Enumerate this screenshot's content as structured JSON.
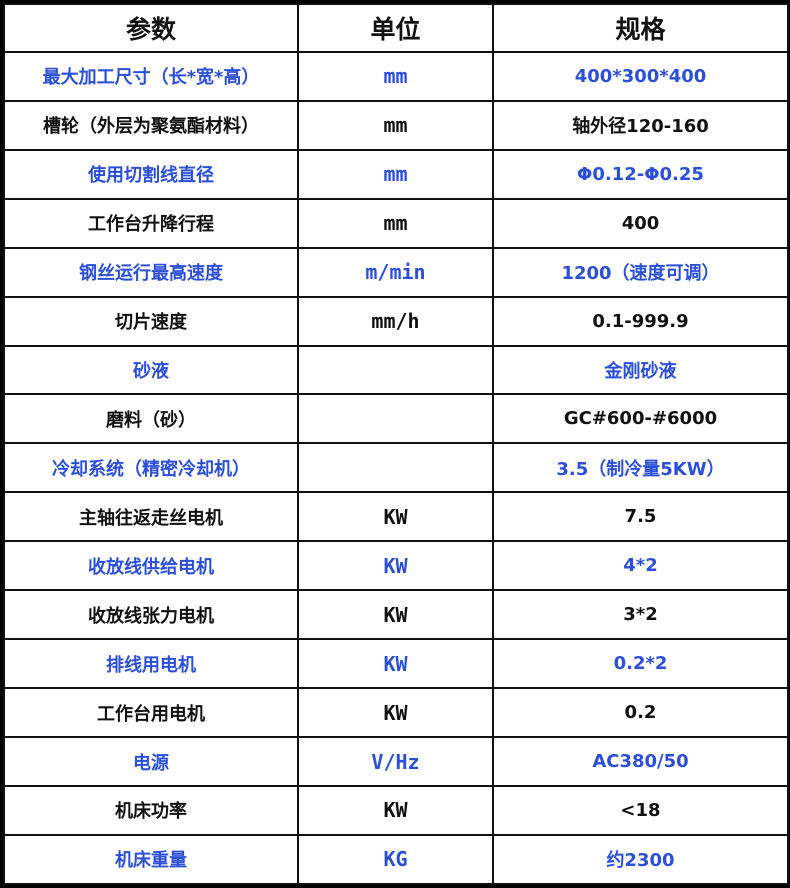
{
  "colors": {
    "blue_text": "#2b4fd8",
    "black_text": "#111111",
    "border": "#000000"
  },
  "headers": [
    "参数",
    "单位",
    "规格"
  ],
  "rows": [
    {
      "param": "最大加工尺寸（长*宽*高）",
      "unit": "mm",
      "spec": "400*300*400",
      "blue": true
    },
    {
      "param": "槽轮（外层为聚氨酯材料）",
      "unit": "mm",
      "spec": "轴外径120-160",
      "blue": false
    },
    {
      "param": "使用切割线直径",
      "unit": "mm",
      "spec": "Φ0.12-Φ0.25",
      "blue": true
    },
    {
      "param": "工作台升降行程",
      "unit": "mm",
      "spec": "400",
      "blue": false
    },
    {
      "param": "钢丝运行最高速度",
      "unit": "m/min",
      "spec": "1200（速度可调）",
      "blue": true
    },
    {
      "param": "切片速度",
      "unit": "mm/h",
      "spec": "0.1-999.9",
      "blue": false
    },
    {
      "param": "砂液",
      "unit": "",
      "spec": "金刚砂液",
      "blue": true
    },
    {
      "param": "磨料（砂）",
      "unit": "",
      "spec": "GC#600-#6000",
      "blue": false
    },
    {
      "param": "冷却系统（精密冷却机）",
      "unit": "",
      "spec": "3.5（制冷量5KW）",
      "blue": true
    },
    {
      "param": "主轴往返走丝电机",
      "unit": "KW",
      "spec": "7.5",
      "blue": false
    },
    {
      "param": "收放线供给电机",
      "unit": "KW",
      "spec": "4*2",
      "blue": true
    },
    {
      "param": "收放线张力电机",
      "unit": "KW",
      "spec": "3*2",
      "blue": false
    },
    {
      "param": "排线用电机",
      "unit": "KW",
      "spec": "0.2*2",
      "blue": true
    },
    {
      "param": "工作台用电机",
      "unit": "KW",
      "spec": "0.2",
      "blue": false
    },
    {
      "param": "电源",
      "unit": "V/Hz",
      "spec": "AC380/50",
      "blue": true
    },
    {
      "param": "机床功率",
      "unit": "KW",
      "spec": "<18",
      "blue": false
    },
    {
      "param": "机床重量",
      "unit": "KG",
      "spec": "约2300",
      "blue": true
    }
  ]
}
